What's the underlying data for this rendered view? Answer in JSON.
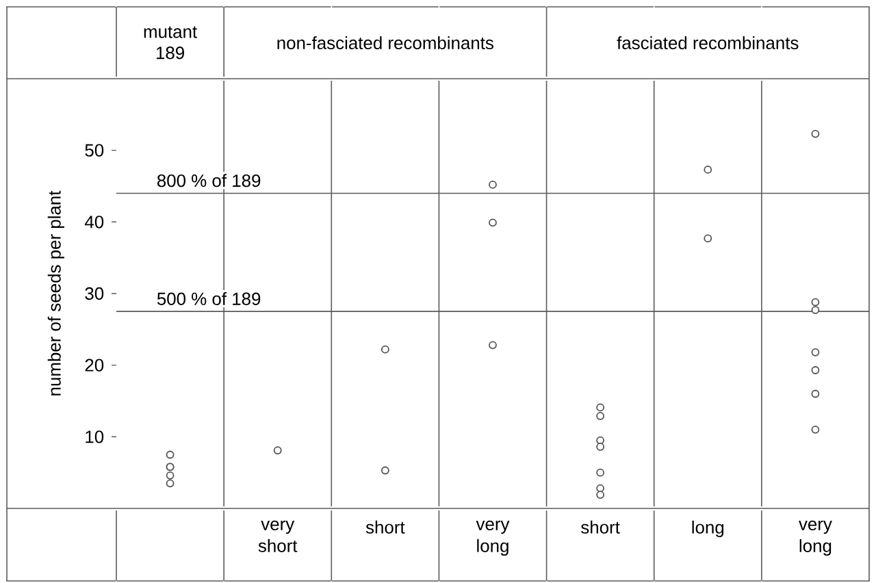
{
  "chart_data": {
    "type": "scatter",
    "ylabel": "number of seeds per plant",
    "categories": [
      null,
      "very short",
      "short",
      "very long",
      "short",
      "long",
      "very long"
    ],
    "annotations": [
      "mutant 189",
      "non-fasciated recombinants",
      "fasciated recombinants"
    ],
    "series": [
      {
        "color": "#555555",
        "values": [
          7.5,
          8.1,
          22.2,
          45.2,
          14.1,
          47.3,
          52.3
        ]
      },
      {
        "color": "#555555",
        "values": [
          5.8,
          null,
          5.3,
          39.9,
          12.9,
          37.7,
          28.8
        ]
      },
      {
        "color": "#555555",
        "values": [
          5.8,
          null,
          null,
          22.8,
          9.5,
          null,
          27.7
        ]
      },
      {
        "color": "#555555",
        "values": [
          4.6,
          null,
          null,
          null,
          8.6,
          null,
          21.8
        ]
      },
      {
        "color": "#555555",
        "values": [
          3.5,
          null,
          null,
          null,
          5.0,
          null,
          19.3
        ]
      },
      {
        "color": "#555555",
        "values": [
          null,
          null,
          null,
          null,
          2.8,
          null,
          16.0
        ]
      },
      {
        "color": "#555555",
        "values": [
          null,
          null,
          null,
          null,
          1.9,
          null,
          11.0
        ]
      }
    ],
    "ylim": [
      0,
      60
    ],
    "yticks": [
      10,
      20,
      30,
      40,
      50
    ],
    "ref_lines": [
      {
        "axis": "y",
        "value": 44,
        "label": "800 % of 189"
      },
      {
        "axis": "y",
        "value": 27.5,
        "label": "500 % of 189"
      }
    ],
    "marker": "circle"
  }
}
